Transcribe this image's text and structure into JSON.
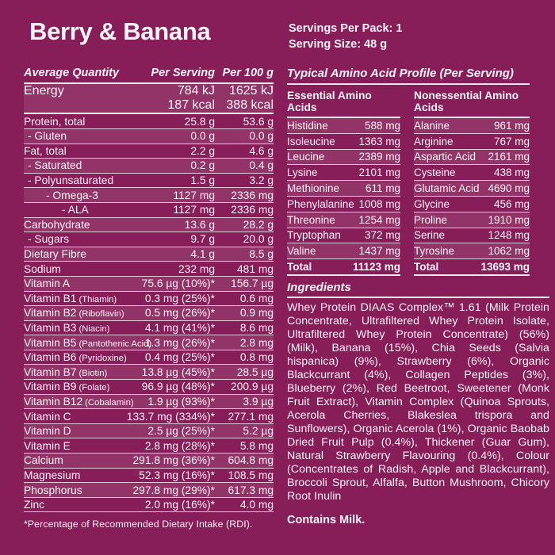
{
  "colors": {
    "background": "#871E59",
    "row_stripe": "rgba(255,255,255,0.10)",
    "text": "#FAF3F7",
    "rule_lines": "#FAF3F7"
  },
  "header": {
    "title": "Berry & Banana",
    "servings_per_pack": "Servings Per Pack: 1",
    "serving_size": "Serving Size: 48 g"
  },
  "nutrition": {
    "headers": {
      "col1": "Average Quantity",
      "col2": "Per Serving",
      "col3": "Per 100 g"
    },
    "energy": {
      "label": "Energy",
      "kj_serving": "784 kJ",
      "kj_100g": "1625 kJ",
      "kcal_serving": "187 kcal",
      "kcal_100g": "388 kcal"
    },
    "rows": [
      {
        "label": "Protein, total",
        "per_serving": "25.8 g",
        "per_100g": "53.6 g",
        "indent": 0
      },
      {
        "label": "- Gluten",
        "per_serving": "0.0 g",
        "per_100g": "0.0 g",
        "indent": 1
      },
      {
        "label": "Fat, total",
        "per_serving": "2.2 g",
        "per_100g": "4.6 g",
        "indent": 0
      },
      {
        "label": "- Saturated",
        "per_serving": "0.2 g",
        "per_100g": "0.4 g",
        "indent": 1
      },
      {
        "label": "- Polyunsaturated",
        "per_serving": "1.5 g",
        "per_100g": "3.2 g",
        "indent": 1
      },
      {
        "label": "- Omega-3",
        "per_serving": "1127 mg",
        "per_100g": "2336 mg",
        "indent": 2
      },
      {
        "label": "- ALA",
        "per_serving": "1127 mg",
        "per_100g": "2336 mg",
        "indent": 3
      },
      {
        "label": "Carbohydrate",
        "per_serving": "13.6 g",
        "per_100g": "28.2 g",
        "indent": 0
      },
      {
        "label": "- Sugars",
        "per_serving": "9.7 g",
        "per_100g": "20.0 g",
        "indent": 1
      },
      {
        "label": "Dietary Fibre",
        "per_serving": "4.1 g",
        "per_100g": "8.5 g",
        "indent": 0
      },
      {
        "label": "Sodium",
        "per_serving": "232 mg",
        "per_100g": "481 mg",
        "indent": 0
      },
      {
        "label": "Vitamin A",
        "per_serving": "75.6 µg (10%)*",
        "per_100g": "156.7 µg",
        "indent": 0
      },
      {
        "label": "Vitamin B1",
        "sublabel": "(Thiamin)",
        "per_serving": "0.3 mg (25%)*",
        "per_100g": "0.6 mg",
        "indent": 0
      },
      {
        "label": "Vitamin B2",
        "sublabel": "(Riboflavin)",
        "per_serving": "0.5 mg (26%)*",
        "per_100g": "0.9 mg",
        "indent": 0
      },
      {
        "label": "Vitamin B3",
        "sublabel": "(Niacin)",
        "per_serving": "4.1 mg (41%)*",
        "per_100g": "8.6 mg",
        "indent": 0
      },
      {
        "label": "Vitamin B5",
        "sublabel": "(Pantothenic Acid)",
        "per_serving": "1.3 mg (26%)*",
        "per_100g": "2.8 mg",
        "indent": 0
      },
      {
        "label": "Vitamin B6",
        "sublabel": "(Pyridoxine)",
        "per_serving": "0.4 mg (25%)*",
        "per_100g": "0.8 mg",
        "indent": 0
      },
      {
        "label": "Vitamin B7",
        "sublabel": "(Biotin)",
        "per_serving": "13.8 µg (45%)*",
        "per_100g": "28.5 µg",
        "indent": 0
      },
      {
        "label": "Vitamin B9",
        "sublabel": "(Folate)",
        "per_serving": "96.9 µg (48%)*",
        "per_100g": "200.9 µg",
        "indent": 0
      },
      {
        "label": "Vitamin B12",
        "sublabel": "(Cobalamin)",
        "per_serving": "1.9 µg (93%)*",
        "per_100g": "3.9 µg",
        "indent": 0
      },
      {
        "label": "Vitamin C",
        "per_serving": "133.7 mg (334%)*",
        "per_100g": "277.1 mg",
        "indent": 0
      },
      {
        "label": "Vitamin D",
        "per_serving": "2.5 µg (25%)*",
        "per_100g": "5.2 µg",
        "indent": 0
      },
      {
        "label": "Vitamin E",
        "per_serving": "2.8 mg (28%)*",
        "per_100g": "5.8 mg",
        "indent": 0
      },
      {
        "label": "Calcium",
        "per_serving": "291.8 mg (36%)*",
        "per_100g": "604.8 mg",
        "indent": 0
      },
      {
        "label": "Magnesium",
        "per_serving": "52.3 mg (16%)*",
        "per_100g": "108.5 mg",
        "indent": 0
      },
      {
        "label": "Phosphorus",
        "per_serving": "297.8 mg (29%)*",
        "per_100g": "617.3 mg",
        "indent": 0
      },
      {
        "label": "Zinc",
        "per_serving": "2.0 mg (16%)*",
        "per_100g": "4.0 mg",
        "indent": 0
      }
    ],
    "footnote": "*Percentage of Recommended Dietary Intake (RDI)."
  },
  "amino": {
    "title": "Typical Amino Acid Profile (Per Serving)",
    "essential": {
      "header": "Essential Amino Acids",
      "rows": [
        {
          "name": "Histidine",
          "value": "588 mg"
        },
        {
          "name": "Isoleucine",
          "value": "1363 mg"
        },
        {
          "name": "Leucine",
          "value": "2389 mg"
        },
        {
          "name": "Lysine",
          "value": "2101 mg"
        },
        {
          "name": "Methionine",
          "value": "611 mg"
        },
        {
          "name": "Phenylalanine",
          "value": "1008 mg"
        },
        {
          "name": "Threonine",
          "value": "1254 mg"
        },
        {
          "name": "Tryptophan",
          "value": "372 mg"
        },
        {
          "name": "Valine",
          "value": "1437 mg"
        },
        {
          "name": "Total",
          "value": "11123 mg",
          "total": true
        }
      ]
    },
    "nonessential": {
      "header": "Nonessential Amino Acids",
      "rows": [
        {
          "name": "Alanine",
          "value": "961 mg"
        },
        {
          "name": "Arginine",
          "value": "767 mg"
        },
        {
          "name": "Aspartic Acid",
          "value": "2161 mg"
        },
        {
          "name": "Cysteine",
          "value": "438 mg"
        },
        {
          "name": "Glutamic Acid",
          "value": "4690 mg"
        },
        {
          "name": "Glycine",
          "value": "456 mg"
        },
        {
          "name": "Proline",
          "value": "1910 mg"
        },
        {
          "name": "Serine",
          "value": "1248 mg"
        },
        {
          "name": "Tyrosine",
          "value": "1062 mg"
        },
        {
          "name": "Total",
          "value": "13693 mg",
          "total": true
        }
      ]
    }
  },
  "ingredients": {
    "title": "Ingredients",
    "text": "Whey Protein DIAAS Complex™ 1.61 (Milk Protein Concentrate, Ultrafiltered Whey Protein Isolate, Ultrafiltered Whey Protein Concentrate) (56%) (Milk), Banana (15%), Chia Seeds (Salvia hispanica) (9%), Strawberry (6%), Organic Blackcurrant (4%), Collagen Peptides (3%), Blueberry (2%), Red Beetroot, Sweetener (Monk Fruit Extract), Vitamin Complex (Quinoa Sprouts, Acerola Cherries, Blakeslea trispora and Sunflowers), Organic Acerola (1%), Organic Baobab Dried Fruit Pulp (0.4%), Thickener (Guar Gum), Natural Strawberry Flavouring (0.4%), Colour (Concentrates of Radish, Apple and Blackcurrant), Broccoli Sprout, Alfalfa, Button Mushroom, Chicory Root Inulin",
    "contains": "Contains Milk."
  }
}
